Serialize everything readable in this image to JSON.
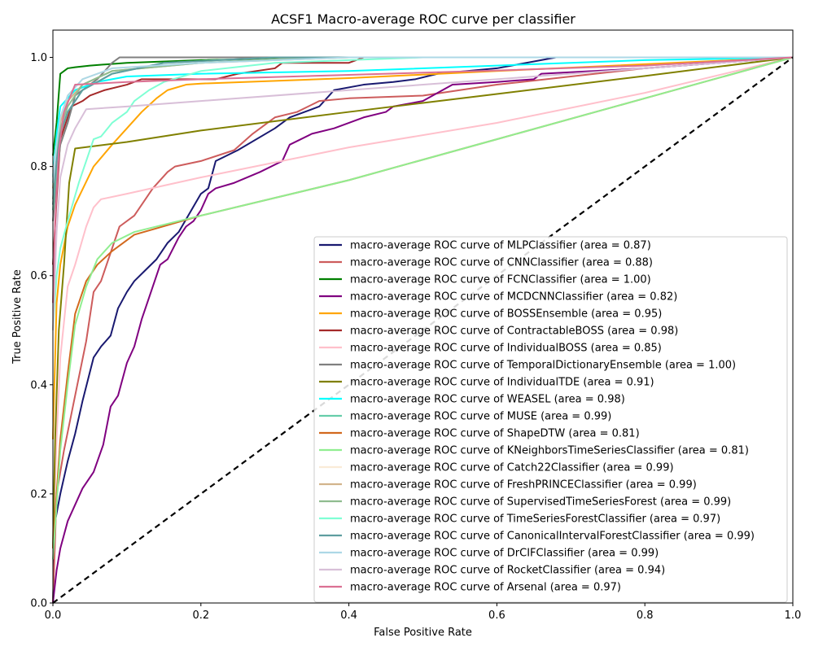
{
  "chart_data": {
    "type": "line",
    "title": "ACSF1 Macro-average ROC curve per classifier",
    "xlabel": "False Positive Rate",
    "ylabel": "True Positive Rate",
    "xlim": [
      0.0,
      1.0
    ],
    "ylim": [
      0.0,
      1.05
    ],
    "x_ticks": [
      0.0,
      0.2,
      0.4,
      0.6,
      0.8,
      1.0
    ],
    "x_tick_labels": [
      "0.0",
      "0.2",
      "0.4",
      "0.6",
      "0.8",
      "1.0"
    ],
    "y_ticks": [
      0.0,
      0.2,
      0.4,
      0.6,
      0.8,
      1.0
    ],
    "y_tick_labels": [
      "0.0",
      "0.2",
      "0.4",
      "0.6",
      "0.8",
      "1.0"
    ],
    "grid": false,
    "legend_position": "lower-right",
    "diagonal": {
      "x": [
        0,
        1
      ],
      "y": [
        0,
        1
      ],
      "color": "#000000",
      "style": "dashed"
    },
    "series": [
      {
        "name": "macro-average ROC curve of MLPClassifier (area = 0.87)",
        "color": "#191970",
        "x": [
          0,
          0.003,
          0.01,
          0.02,
          0.03,
          0.04,
          0.055,
          0.065,
          0.078,
          0.088,
          0.1,
          0.11,
          0.125,
          0.14,
          0.155,
          0.17,
          0.2,
          0.21,
          0.22,
          0.25,
          0.3,
          0.32,
          0.36,
          0.38,
          0.42,
          0.46,
          0.49,
          0.52,
          0.6,
          0.68,
          1.0
        ],
        "y": [
          0,
          0.15,
          0.2,
          0.26,
          0.31,
          0.37,
          0.45,
          0.47,
          0.49,
          0.54,
          0.57,
          0.59,
          0.61,
          0.63,
          0.66,
          0.68,
          0.75,
          0.76,
          0.81,
          0.83,
          0.87,
          0.89,
          0.91,
          0.94,
          0.95,
          0.955,
          0.96,
          0.97,
          0.98,
          1.0,
          1.0
        ]
      },
      {
        "name": "macro-average ROC curve of CNNClassifier (area = 0.88)",
        "color": "#CD5C5C",
        "x": [
          0,
          0.005,
          0.015,
          0.03,
          0.045,
          0.055,
          0.065,
          0.09,
          0.11,
          0.12,
          0.135,
          0.155,
          0.165,
          0.2,
          0.245,
          0.27,
          0.3,
          0.33,
          0.36,
          0.4,
          0.5,
          0.6,
          0.8,
          1.0
        ],
        "y": [
          0,
          0.2,
          0.28,
          0.38,
          0.48,
          0.57,
          0.59,
          0.69,
          0.71,
          0.73,
          0.76,
          0.79,
          0.8,
          0.81,
          0.83,
          0.86,
          0.89,
          0.9,
          0.92,
          0.925,
          0.93,
          0.95,
          0.98,
          1.0
        ]
      },
      {
        "name": "macro-average ROC curve of FCNClassifier (area = 1.00)",
        "color": "#008000",
        "x": [
          0,
          0.005,
          0.01,
          0.02,
          0.03,
          0.05,
          0.1,
          0.2,
          0.4,
          1.0
        ],
        "y": [
          0.82,
          0.88,
          0.97,
          0.98,
          0.982,
          0.985,
          0.99,
          0.995,
          1.0,
          1.0
        ]
      },
      {
        "name": "macro-average ROC curve of MCDCNNClassifier (area = 0.82)",
        "color": "#800080",
        "x": [
          0,
          0.005,
          0.01,
          0.02,
          0.03,
          0.04,
          0.055,
          0.068,
          0.078,
          0.088,
          0.1,
          0.11,
          0.12,
          0.13,
          0.145,
          0.155,
          0.17,
          0.18,
          0.19,
          0.2,
          0.21,
          0.22,
          0.245,
          0.28,
          0.31,
          0.32,
          0.35,
          0.38,
          0.42,
          0.45,
          0.46,
          0.5,
          0.54,
          0.6,
          0.65,
          0.66,
          0.8,
          1.0
        ],
        "y": [
          0,
          0.06,
          0.1,
          0.15,
          0.18,
          0.21,
          0.24,
          0.29,
          0.36,
          0.38,
          0.44,
          0.47,
          0.52,
          0.56,
          0.62,
          0.63,
          0.67,
          0.69,
          0.7,
          0.72,
          0.75,
          0.76,
          0.77,
          0.79,
          0.81,
          0.84,
          0.86,
          0.87,
          0.89,
          0.9,
          0.91,
          0.92,
          0.95,
          0.955,
          0.96,
          0.97,
          0.98,
          1.0
        ]
      },
      {
        "name": "macro-average ROC curve of BOSSEnsemble (area = 0.95)",
        "color": "#FFA500",
        "x": [
          0,
          0.005,
          0.01,
          0.02,
          0.03,
          0.055,
          0.08,
          0.1,
          0.12,
          0.14,
          0.155,
          0.18,
          0.2,
          0.4,
          0.6,
          1.0
        ],
        "y": [
          0.3,
          0.55,
          0.62,
          0.69,
          0.73,
          0.8,
          0.84,
          0.87,
          0.9,
          0.925,
          0.94,
          0.95,
          0.952,
          0.962,
          0.975,
          1.0
        ]
      },
      {
        "name": "macro-average ROC curve of ContractableBOSS (area = 0.98)",
        "color": "#A52A2A",
        "x": [
          0,
          0.005,
          0.01,
          0.025,
          0.04,
          0.05,
          0.07,
          0.1,
          0.12,
          0.15,
          0.2,
          0.22,
          0.25,
          0.3,
          0.31,
          0.36,
          0.4,
          0.42,
          0.6,
          0.8,
          1.0
        ],
        "y": [
          0.62,
          0.74,
          0.85,
          0.91,
          0.92,
          0.93,
          0.94,
          0.95,
          0.96,
          0.96,
          0.96,
          0.96,
          0.97,
          0.98,
          0.99,
          0.99,
          0.99,
          1.0,
          1.0,
          1.0,
          1.0
        ]
      },
      {
        "name": "macro-average ROC curve of IndividualBOSS (area = 0.85)",
        "color": "#FFC0CB",
        "x": [
          0,
          0.005,
          0.01,
          0.02,
          0.03,
          0.045,
          0.055,
          0.065,
          0.1,
          0.2,
          0.4,
          0.6,
          0.8,
          1.0
        ],
        "y": [
          0.1,
          0.3,
          0.45,
          0.58,
          0.62,
          0.69,
          0.725,
          0.74,
          0.75,
          0.78,
          0.835,
          0.88,
          0.935,
          1.0
        ]
      },
      {
        "name": "macro-average ROC curve of TemporalDictionaryEnsemble (area = 1.00)",
        "color": "#808080",
        "x": [
          0,
          0.005,
          0.01,
          0.02,
          0.03,
          0.06,
          0.08,
          0.09,
          0.15,
          0.3,
          1.0
        ],
        "y": [
          0.7,
          0.78,
          0.84,
          0.88,
          0.93,
          0.96,
          0.99,
          1.0,
          1.0,
          1.0,
          1.0
        ]
      },
      {
        "name": "macro-average ROC curve of IndividualTDE (area = 0.91)",
        "color": "#808000",
        "x": [
          0,
          0.003,
          0.008,
          0.015,
          0.022,
          0.03,
          0.1,
          0.2,
          0.4,
          0.6,
          0.8,
          1.0
        ],
        "y": [
          0.1,
          0.3,
          0.5,
          0.62,
          0.77,
          0.833,
          0.845,
          0.866,
          0.9,
          0.933,
          0.966,
          1.0
        ]
      },
      {
        "name": "macro-average ROC curve of WEASEL (area = 0.98)",
        "color": "#00FFFF",
        "x": [
          0,
          0.005,
          0.01,
          0.03,
          0.06,
          0.1,
          0.2,
          0.4,
          0.6,
          0.8,
          1.0
        ],
        "y": [
          0.78,
          0.86,
          0.91,
          0.94,
          0.955,
          0.965,
          0.97,
          0.975,
          0.985,
          0.995,
          1.0
        ]
      },
      {
        "name": "macro-average ROC curve of MUSE (area = 0.99)",
        "color": "#66CDAA",
        "x": [
          0,
          0.005,
          0.01,
          0.02,
          0.04,
          0.08,
          0.15,
          0.3,
          1.0
        ],
        "y": [
          0.72,
          0.8,
          0.86,
          0.9,
          0.94,
          0.97,
          0.99,
          1.0,
          1.0
        ]
      },
      {
        "name": "macro-average ROC curve of ShapeDTW (area = 0.81)",
        "color": "#D2691E",
        "x": [
          0,
          0.005,
          0.01,
          0.02,
          0.03,
          0.045,
          0.06,
          0.08,
          0.11,
          0.2,
          0.4,
          0.6,
          0.8,
          1.0
        ],
        "y": [
          0.1,
          0.2,
          0.3,
          0.42,
          0.53,
          0.59,
          0.62,
          0.645,
          0.675,
          0.71,
          0.775,
          0.85,
          0.925,
          1.0
        ]
      },
      {
        "name": "macro-average ROC curve of KNeighborsTimeSeriesClassifier (area = 0.81)",
        "color": "#90EE90",
        "x": [
          0,
          0.005,
          0.01,
          0.02,
          0.03,
          0.045,
          0.06,
          0.08,
          0.11,
          0.2,
          0.4,
          0.6,
          0.8,
          1.0
        ],
        "y": [
          0.08,
          0.18,
          0.28,
          0.4,
          0.51,
          0.58,
          0.63,
          0.66,
          0.68,
          0.71,
          0.775,
          0.85,
          0.925,
          1.0
        ]
      },
      {
        "name": "macro-average ROC curve of Catch22Classifier (area = 0.99)",
        "color": "#FAEBD7",
        "x": [
          0,
          0.005,
          0.01,
          0.02,
          0.04,
          0.08,
          0.2,
          0.4,
          1.0
        ],
        "y": [
          0.78,
          0.84,
          0.88,
          0.93,
          0.96,
          0.98,
          0.99,
          1.0,
          1.0
        ]
      },
      {
        "name": "macro-average ROC curve of FreshPRINCEClassifier (area = 0.99)",
        "color": "#D2B48C",
        "x": [
          0,
          0.005,
          0.01,
          0.02,
          0.04,
          0.08,
          0.2,
          0.4,
          1.0
        ],
        "y": [
          0.76,
          0.83,
          0.88,
          0.92,
          0.95,
          0.975,
          0.99,
          1.0,
          1.0
        ]
      },
      {
        "name": "macro-average ROC curve of SupervisedTimeSeriesForest (area = 0.99)",
        "color": "#8FBC8F",
        "x": [
          0,
          0.005,
          0.01,
          0.02,
          0.04,
          0.08,
          0.2,
          0.35,
          1.0
        ],
        "y": [
          0.74,
          0.82,
          0.87,
          0.91,
          0.95,
          0.975,
          0.99,
          1.0,
          1.0
        ]
      },
      {
        "name": "macro-average ROC curve of TimeSeriesForestClassifier (area = 0.97)",
        "color": "#7FFFD4",
        "x": [
          0,
          0.005,
          0.01,
          0.02,
          0.035,
          0.055,
          0.065,
          0.08,
          0.1,
          0.11,
          0.13,
          0.15,
          0.2,
          0.3,
          0.5,
          1.0
        ],
        "y": [
          0.5,
          0.6,
          0.65,
          0.7,
          0.77,
          0.85,
          0.855,
          0.88,
          0.9,
          0.92,
          0.94,
          0.955,
          0.975,
          0.99,
          1.0,
          1.0
        ]
      },
      {
        "name": "macro-average ROC curve of CanonicalIntervalForestClassifier (area = 0.99)",
        "color": "#5F9EA0",
        "x": [
          0,
          0.005,
          0.01,
          0.02,
          0.04,
          0.08,
          0.15,
          0.3,
          1.0
        ],
        "y": [
          0.73,
          0.81,
          0.86,
          0.9,
          0.94,
          0.97,
          0.99,
          1.0,
          1.0
        ]
      },
      {
        "name": "macro-average ROC curve of DrCIFClassifier (area = 0.99)",
        "color": "#ADD8E6",
        "x": [
          0,
          0.005,
          0.01,
          0.02,
          0.04,
          0.08,
          0.2,
          0.4,
          1.0
        ],
        "y": [
          0.77,
          0.84,
          0.89,
          0.93,
          0.96,
          0.98,
          0.99,
          1.0,
          1.0
        ]
      },
      {
        "name": "macro-average ROC curve of RocketClassifier (area = 0.94)",
        "color": "#D8BFD8",
        "x": [
          0,
          0.005,
          0.01,
          0.02,
          0.03,
          0.045,
          0.1,
          0.2,
          0.4,
          0.6,
          0.8,
          1.0
        ],
        "y": [
          0.5,
          0.68,
          0.78,
          0.84,
          0.87,
          0.905,
          0.91,
          0.92,
          0.94,
          0.96,
          0.98,
          1.0
        ]
      },
      {
        "name": "macro-average ROC curve of Arsenal (area = 0.97)",
        "color": "#DB7093",
        "x": [
          0,
          0.003,
          0.008,
          0.015,
          0.03,
          0.06,
          0.1,
          0.2,
          0.4,
          0.6,
          0.8,
          1.0
        ],
        "y": [
          0.55,
          0.7,
          0.83,
          0.9,
          0.95,
          0.952,
          0.955,
          0.96,
          0.968,
          0.976,
          0.985,
          1.0
        ]
      }
    ]
  }
}
